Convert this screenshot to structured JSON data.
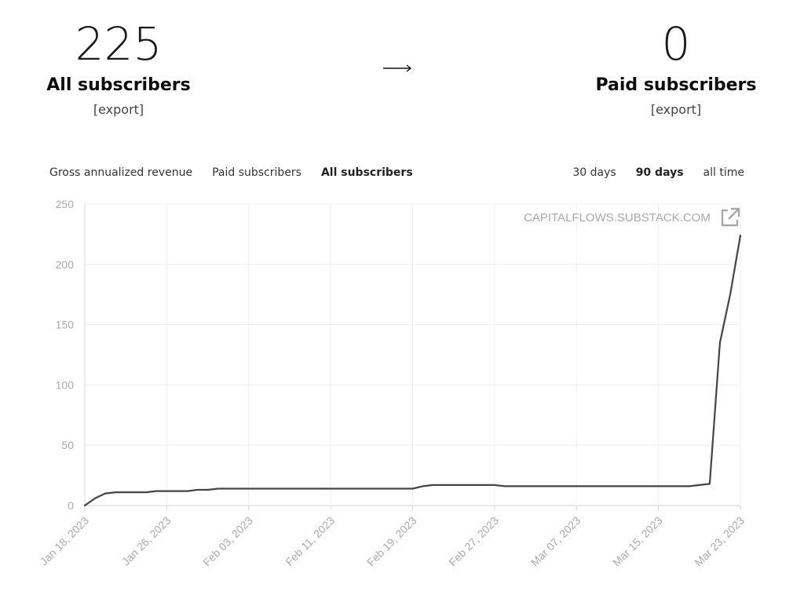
{
  "stats": {
    "all": {
      "number": "225",
      "label": "All subscribers",
      "export": "[export]"
    },
    "paid": {
      "number": "0",
      "label": "Paid subscribers",
      "export": "[export]"
    }
  },
  "tabs": [
    {
      "label": "Gross annualized revenue",
      "active": false
    },
    {
      "label": "Paid subscribers",
      "active": false
    },
    {
      "label": "All subscribers",
      "active": true
    }
  ],
  "ranges": [
    {
      "label": "30 days",
      "active": false
    },
    {
      "label": "90 days",
      "active": true
    },
    {
      "label": "all time",
      "active": false
    }
  ],
  "watermark": "CAPITALFLOWS.SUBSTACK.COM",
  "icons": {
    "arrow": "arrow-right-icon",
    "external": "external-link-icon"
  },
  "colors": {
    "line": "#444444",
    "grid": "#efefef",
    "axis_text": "#aaaaaa"
  },
  "chart_data": {
    "type": "line",
    "title": "",
    "xlabel": "",
    "ylabel": "",
    "ylim": [
      0,
      250
    ],
    "yticks": [
      0,
      50,
      100,
      150,
      200,
      250
    ],
    "xlim": [
      "2023-01-18",
      "2023-03-23"
    ],
    "xtick_labels": [
      "Jan 18, 2023",
      "Jan 26, 2023",
      "Feb 03, 2023",
      "Feb 11, 2023",
      "Feb 19, 2023",
      "Feb 27, 2023",
      "Mar 07, 2023",
      "Mar 15, 2023",
      "Mar 23, 2023"
    ],
    "grid": true,
    "legend": "none",
    "series": [
      {
        "x": [
          "2023-01-18",
          "2023-01-19",
          "2023-01-20",
          "2023-01-21",
          "2023-01-22",
          "2023-01-24",
          "2023-01-25",
          "2023-01-27",
          "2023-01-28",
          "2023-01-29",
          "2023-01-30",
          "2023-01-31",
          "2023-02-01",
          "2023-02-19",
          "2023-02-20",
          "2023-02-21",
          "2023-02-22",
          "2023-02-27",
          "2023-02-28",
          "2023-03-18",
          "2023-03-19",
          "2023-03-20",
          "2023-03-21",
          "2023-03-22",
          "2023-03-23"
        ],
        "y": [
          0,
          6,
          10,
          11,
          11,
          11,
          12,
          12,
          12,
          13,
          13,
          14,
          14,
          14,
          16,
          17,
          17,
          17,
          16,
          16,
          17,
          18,
          135,
          175,
          224
        ]
      }
    ]
  }
}
